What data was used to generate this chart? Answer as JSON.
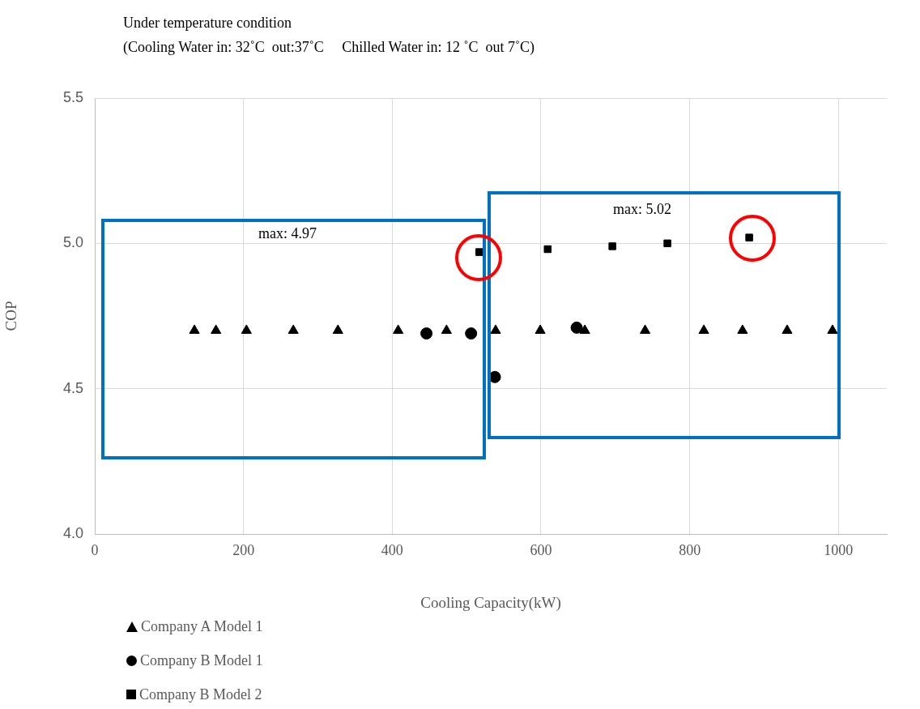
{
  "chart_data": {
    "type": "scatter",
    "title": "Under temperature condition",
    "subtitle": "(Cooling Water in: 32˚C  out:37˚C     Chilled Water in: 12 ˚C  out 7˚C)",
    "xlabel": "Cooling Capacity(kW)",
    "ylabel": "COP",
    "xlim": [
      0,
      1065
    ],
    "xticks": [
      0,
      200,
      400,
      600,
      800,
      1000
    ],
    "ylim": [
      4.0,
      5.5
    ],
    "yticks": [
      {
        "value": 4,
        "label": "4.0"
      },
      {
        "value": 4.5,
        "label": "4.5"
      },
      {
        "value": 5,
        "label": "5.0"
      },
      {
        "value": 5.5,
        "label": "5.5"
      }
    ],
    "grid": true,
    "legend": "bottom left",
    "annotations": [
      "max: 4.97",
      "max: 5.02"
    ],
    "series": [
      {
        "name": "Company A Model 1",
        "color": "#000000",
        "marker": "triangle",
        "x": [
          134,
          163,
          204,
          267,
          327,
          408,
          473,
          539,
          599,
          659,
          740,
          819,
          871,
          931,
          992
        ],
        "values": [
          4.7,
          4.7,
          4.7,
          4.7,
          4.7,
          4.7,
          4.7,
          4.7,
          4.7,
          4.7,
          4.7,
          4.7,
          4.7,
          4.7,
          4.7
        ]
      },
      {
        "name": "Company B Model 1",
        "color": "#000000",
        "marker": "circle",
        "x": [
          446,
          506,
          538,
          648
        ],
        "values": [
          4.69,
          4.69,
          4.54,
          4.71
        ]
      },
      {
        "name": "Company B Model 2",
        "color": "#000000",
        "marker": "square",
        "x": [
          517,
          609,
          696,
          770,
          880
        ],
        "values": [
          4.97,
          4.98,
          4.99,
          5.0,
          5.02
        ]
      }
    ]
  }
}
